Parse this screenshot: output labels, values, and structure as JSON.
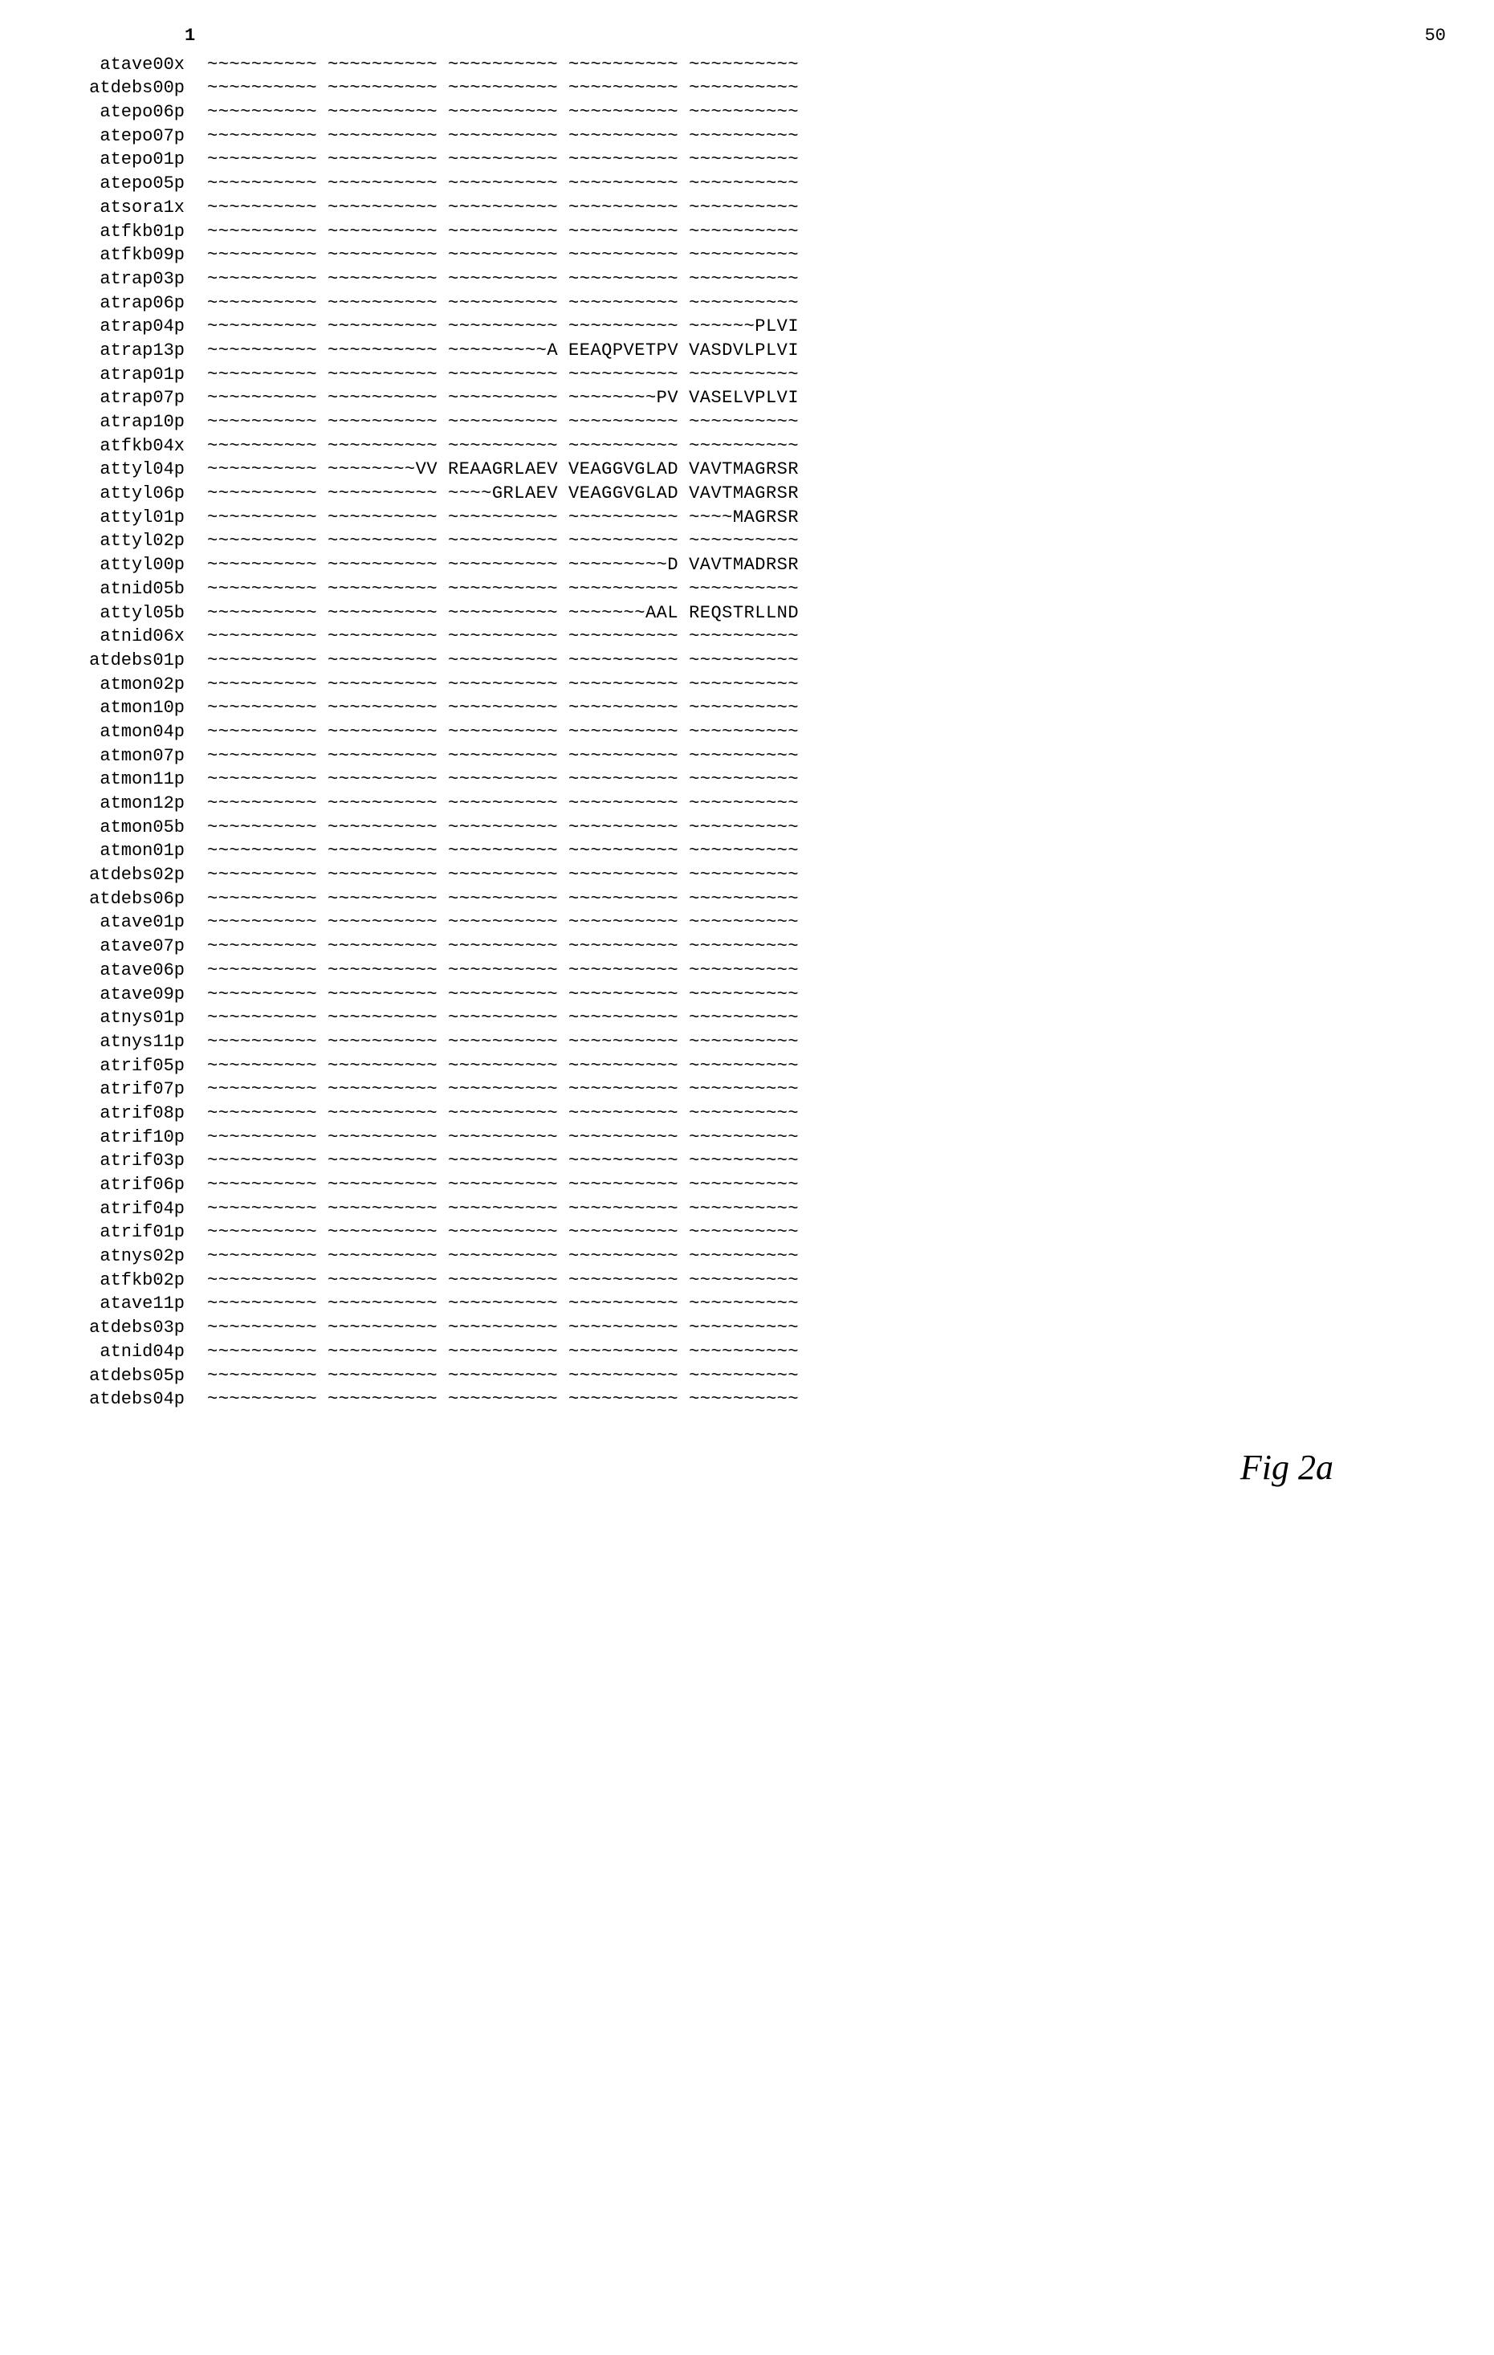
{
  "header": {
    "start": "1",
    "end": "50"
  },
  "figure_label": "Fig 2a",
  "tilde": "~~~~~~~~~~",
  "rows": [
    {
      "label": "atave00x",
      "blocks": [
        "~~~~~~~~~~",
        "~~~~~~~~~~",
        "~~~~~~~~~~",
        "~~~~~~~~~~",
        "~~~~~~~~~~"
      ]
    },
    {
      "label": "atdebs00p",
      "blocks": [
        "~~~~~~~~~~",
        "~~~~~~~~~~",
        "~~~~~~~~~~",
        "~~~~~~~~~~",
        "~~~~~~~~~~"
      ]
    },
    {
      "label": "atepo06p",
      "blocks": [
        "~~~~~~~~~~",
        "~~~~~~~~~~",
        "~~~~~~~~~~",
        "~~~~~~~~~~",
        "~~~~~~~~~~"
      ]
    },
    {
      "label": "atepo07p",
      "blocks": [
        "~~~~~~~~~~",
        "~~~~~~~~~~",
        "~~~~~~~~~~",
        "~~~~~~~~~~",
        "~~~~~~~~~~"
      ]
    },
    {
      "label": "atepo01p",
      "blocks": [
        "~~~~~~~~~~",
        "~~~~~~~~~~",
        "~~~~~~~~~~",
        "~~~~~~~~~~",
        "~~~~~~~~~~"
      ]
    },
    {
      "label": "atepo05p",
      "blocks": [
        "~~~~~~~~~~",
        "~~~~~~~~~~",
        "~~~~~~~~~~",
        "~~~~~~~~~~",
        "~~~~~~~~~~"
      ]
    },
    {
      "label": "atsora1x",
      "blocks": [
        "~~~~~~~~~~",
        "~~~~~~~~~~",
        "~~~~~~~~~~",
        "~~~~~~~~~~",
        "~~~~~~~~~~"
      ]
    },
    {
      "label": "atfkb01p",
      "blocks": [
        "~~~~~~~~~~",
        "~~~~~~~~~~",
        "~~~~~~~~~~",
        "~~~~~~~~~~",
        "~~~~~~~~~~"
      ]
    },
    {
      "label": "atfkb09p",
      "blocks": [
        "~~~~~~~~~~",
        "~~~~~~~~~~",
        "~~~~~~~~~~",
        "~~~~~~~~~~",
        "~~~~~~~~~~"
      ]
    },
    {
      "label": "atrap03p",
      "blocks": [
        "~~~~~~~~~~",
        "~~~~~~~~~~",
        "~~~~~~~~~~",
        "~~~~~~~~~~",
        "~~~~~~~~~~"
      ]
    },
    {
      "label": "atrap06p",
      "blocks": [
        "~~~~~~~~~~",
        "~~~~~~~~~~",
        "~~~~~~~~~~",
        "~~~~~~~~~~",
        "~~~~~~~~~~"
      ]
    },
    {
      "label": "atrap04p",
      "blocks": [
        "~~~~~~~~~~",
        "~~~~~~~~~~",
        "~~~~~~~~~~",
        "~~~~~~~~~~",
        "~~~~~~PLVI"
      ]
    },
    {
      "label": "atrap13p",
      "blocks": [
        "~~~~~~~~~~",
        "~~~~~~~~~~",
        "~~~~~~~~~A",
        "EEAQPVETPV",
        "VASDVLPLVI"
      ]
    },
    {
      "label": "atrap01p",
      "blocks": [
        "~~~~~~~~~~",
        "~~~~~~~~~~",
        "~~~~~~~~~~",
        "~~~~~~~~~~",
        "~~~~~~~~~~"
      ]
    },
    {
      "label": "atrap07p",
      "blocks": [
        "~~~~~~~~~~",
        "~~~~~~~~~~",
        "~~~~~~~~~~",
        "~~~~~~~~PV",
        "VASELVPLVI"
      ]
    },
    {
      "label": "atrap10p",
      "blocks": [
        "~~~~~~~~~~",
        "~~~~~~~~~~",
        "~~~~~~~~~~",
        "~~~~~~~~~~",
        "~~~~~~~~~~"
      ]
    },
    {
      "label": "atfkb04x",
      "blocks": [
        "~~~~~~~~~~",
        "~~~~~~~~~~",
        "~~~~~~~~~~",
        "~~~~~~~~~~",
        "~~~~~~~~~~"
      ]
    },
    {
      "label": "attyl04p",
      "blocks": [
        "~~~~~~~~~~",
        "~~~~~~~~VV",
        "REAAGRLAEV",
        "VEAGGVGLAD",
        "VAVTMAGRSR"
      ]
    },
    {
      "label": "attyl06p",
      "blocks": [
        "~~~~~~~~~~",
        "~~~~~~~~~~",
        "~~~~GRLAEV",
        "VEAGGVGLAD",
        "VAVTMAGRSR"
      ]
    },
    {
      "label": "attyl01p",
      "blocks": [
        "~~~~~~~~~~",
        "~~~~~~~~~~",
        "~~~~~~~~~~",
        "~~~~~~~~~~",
        "~~~~MAGRSR"
      ]
    },
    {
      "label": "attyl02p",
      "blocks": [
        "~~~~~~~~~~",
        "~~~~~~~~~~",
        "~~~~~~~~~~",
        "~~~~~~~~~~",
        "~~~~~~~~~~"
      ]
    },
    {
      "label": "attyl00p",
      "blocks": [
        "~~~~~~~~~~",
        "~~~~~~~~~~",
        "~~~~~~~~~~",
        "~~~~~~~~~D",
        "VAVTMADRSR"
      ]
    },
    {
      "label": "atnid05b",
      "blocks": [
        "~~~~~~~~~~",
        "~~~~~~~~~~",
        "~~~~~~~~~~",
        "~~~~~~~~~~",
        "~~~~~~~~~~"
      ]
    },
    {
      "label": "attyl05b",
      "blocks": [
        "~~~~~~~~~~",
        "~~~~~~~~~~",
        "~~~~~~~~~~",
        "~~~~~~~AAL",
        "REQSTRLLND"
      ]
    },
    {
      "label": "atnid06x",
      "blocks": [
        "~~~~~~~~~~",
        "~~~~~~~~~~",
        "~~~~~~~~~~",
        "~~~~~~~~~~",
        "~~~~~~~~~~"
      ]
    },
    {
      "label": "atdebs01p",
      "blocks": [
        "~~~~~~~~~~",
        "~~~~~~~~~~",
        "~~~~~~~~~~",
        "~~~~~~~~~~",
        "~~~~~~~~~~"
      ]
    },
    {
      "label": "atmon02p",
      "blocks": [
        "~~~~~~~~~~",
        "~~~~~~~~~~",
        "~~~~~~~~~~",
        "~~~~~~~~~~",
        "~~~~~~~~~~"
      ]
    },
    {
      "label": "atmon10p",
      "blocks": [
        "~~~~~~~~~~",
        "~~~~~~~~~~",
        "~~~~~~~~~~",
        "~~~~~~~~~~",
        "~~~~~~~~~~"
      ]
    },
    {
      "label": "atmon04p",
      "blocks": [
        "~~~~~~~~~~",
        "~~~~~~~~~~",
        "~~~~~~~~~~",
        "~~~~~~~~~~",
        "~~~~~~~~~~"
      ]
    },
    {
      "label": "atmon07p",
      "blocks": [
        "~~~~~~~~~~",
        "~~~~~~~~~~",
        "~~~~~~~~~~",
        "~~~~~~~~~~",
        "~~~~~~~~~~"
      ]
    },
    {
      "label": "atmon11p",
      "blocks": [
        "~~~~~~~~~~",
        "~~~~~~~~~~",
        "~~~~~~~~~~",
        "~~~~~~~~~~",
        "~~~~~~~~~~"
      ]
    },
    {
      "label": "atmon12p",
      "blocks": [
        "~~~~~~~~~~",
        "~~~~~~~~~~",
        "~~~~~~~~~~",
        "~~~~~~~~~~",
        "~~~~~~~~~~"
      ]
    },
    {
      "label": "atmon05b",
      "blocks": [
        "~~~~~~~~~~",
        "~~~~~~~~~~",
        "~~~~~~~~~~",
        "~~~~~~~~~~",
        "~~~~~~~~~~"
      ]
    },
    {
      "label": "atmon01p",
      "blocks": [
        "~~~~~~~~~~",
        "~~~~~~~~~~",
        "~~~~~~~~~~",
        "~~~~~~~~~~",
        "~~~~~~~~~~"
      ]
    },
    {
      "label": "atdebs02p",
      "blocks": [
        "~~~~~~~~~~",
        "~~~~~~~~~~",
        "~~~~~~~~~~",
        "~~~~~~~~~~",
        "~~~~~~~~~~"
      ]
    },
    {
      "label": "atdebs06p",
      "blocks": [
        "~~~~~~~~~~",
        "~~~~~~~~~~",
        "~~~~~~~~~~",
        "~~~~~~~~~~",
        "~~~~~~~~~~"
      ]
    },
    {
      "label": "atave01p",
      "blocks": [
        "~~~~~~~~~~",
        "~~~~~~~~~~",
        "~~~~~~~~~~",
        "~~~~~~~~~~",
        "~~~~~~~~~~"
      ]
    },
    {
      "label": "atave07p",
      "blocks": [
        "~~~~~~~~~~",
        "~~~~~~~~~~",
        "~~~~~~~~~~",
        "~~~~~~~~~~",
        "~~~~~~~~~~"
      ]
    },
    {
      "label": "atave06p",
      "blocks": [
        "~~~~~~~~~~",
        "~~~~~~~~~~",
        "~~~~~~~~~~",
        "~~~~~~~~~~",
        "~~~~~~~~~~"
      ]
    },
    {
      "label": "atave09p",
      "blocks": [
        "~~~~~~~~~~",
        "~~~~~~~~~~",
        "~~~~~~~~~~",
        "~~~~~~~~~~",
        "~~~~~~~~~~"
      ]
    },
    {
      "label": "atnys01p",
      "blocks": [
        "~~~~~~~~~~",
        "~~~~~~~~~~",
        "~~~~~~~~~~",
        "~~~~~~~~~~",
        "~~~~~~~~~~"
      ]
    },
    {
      "label": "atnys11p",
      "blocks": [
        "~~~~~~~~~~",
        "~~~~~~~~~~",
        "~~~~~~~~~~",
        "~~~~~~~~~~",
        "~~~~~~~~~~"
      ]
    },
    {
      "label": "atrif05p",
      "blocks": [
        "~~~~~~~~~~",
        "~~~~~~~~~~",
        "~~~~~~~~~~",
        "~~~~~~~~~~",
        "~~~~~~~~~~"
      ]
    },
    {
      "label": "atrif07p",
      "blocks": [
        "~~~~~~~~~~",
        "~~~~~~~~~~",
        "~~~~~~~~~~",
        "~~~~~~~~~~",
        "~~~~~~~~~~"
      ]
    },
    {
      "label": "atrif08p",
      "blocks": [
        "~~~~~~~~~~",
        "~~~~~~~~~~",
        "~~~~~~~~~~",
        "~~~~~~~~~~",
        "~~~~~~~~~~"
      ]
    },
    {
      "label": "atrif10p",
      "blocks": [
        "~~~~~~~~~~",
        "~~~~~~~~~~",
        "~~~~~~~~~~",
        "~~~~~~~~~~",
        "~~~~~~~~~~"
      ]
    },
    {
      "label": "atrif03p",
      "blocks": [
        "~~~~~~~~~~",
        "~~~~~~~~~~",
        "~~~~~~~~~~",
        "~~~~~~~~~~",
        "~~~~~~~~~~"
      ]
    },
    {
      "label": "atrif06p",
      "blocks": [
        "~~~~~~~~~~",
        "~~~~~~~~~~",
        "~~~~~~~~~~",
        "~~~~~~~~~~",
        "~~~~~~~~~~"
      ]
    },
    {
      "label": "atrif04p",
      "blocks": [
        "~~~~~~~~~~",
        "~~~~~~~~~~",
        "~~~~~~~~~~",
        "~~~~~~~~~~",
        "~~~~~~~~~~"
      ]
    },
    {
      "label": "atrif01p",
      "blocks": [
        "~~~~~~~~~~",
        "~~~~~~~~~~",
        "~~~~~~~~~~",
        "~~~~~~~~~~",
        "~~~~~~~~~~"
      ]
    },
    {
      "label": "atnys02p",
      "blocks": [
        "~~~~~~~~~~",
        "~~~~~~~~~~",
        "~~~~~~~~~~",
        "~~~~~~~~~~",
        "~~~~~~~~~~"
      ]
    },
    {
      "label": "atfkb02p",
      "blocks": [
        "~~~~~~~~~~",
        "~~~~~~~~~~",
        "~~~~~~~~~~",
        "~~~~~~~~~~",
        "~~~~~~~~~~"
      ]
    },
    {
      "label": "atave11p",
      "blocks": [
        "~~~~~~~~~~",
        "~~~~~~~~~~",
        "~~~~~~~~~~",
        "~~~~~~~~~~",
        "~~~~~~~~~~"
      ]
    },
    {
      "label": "atdebs03p",
      "blocks": [
        "~~~~~~~~~~",
        "~~~~~~~~~~",
        "~~~~~~~~~~",
        "~~~~~~~~~~",
        "~~~~~~~~~~"
      ]
    },
    {
      "label": "atnid04p",
      "blocks": [
        "~~~~~~~~~~",
        "~~~~~~~~~~",
        "~~~~~~~~~~",
        "~~~~~~~~~~",
        "~~~~~~~~~~"
      ]
    },
    {
      "label": "atdebs05p",
      "blocks": [
        "~~~~~~~~~~",
        "~~~~~~~~~~",
        "~~~~~~~~~~",
        "~~~~~~~~~~",
        "~~~~~~~~~~"
      ]
    },
    {
      "label": "atdebs04p",
      "blocks": [
        "~~~~~~~~~~",
        "~~~~~~~~~~",
        "~~~~~~~~~~",
        "~~~~~~~~~~",
        "~~~~~~~~~~"
      ]
    }
  ]
}
